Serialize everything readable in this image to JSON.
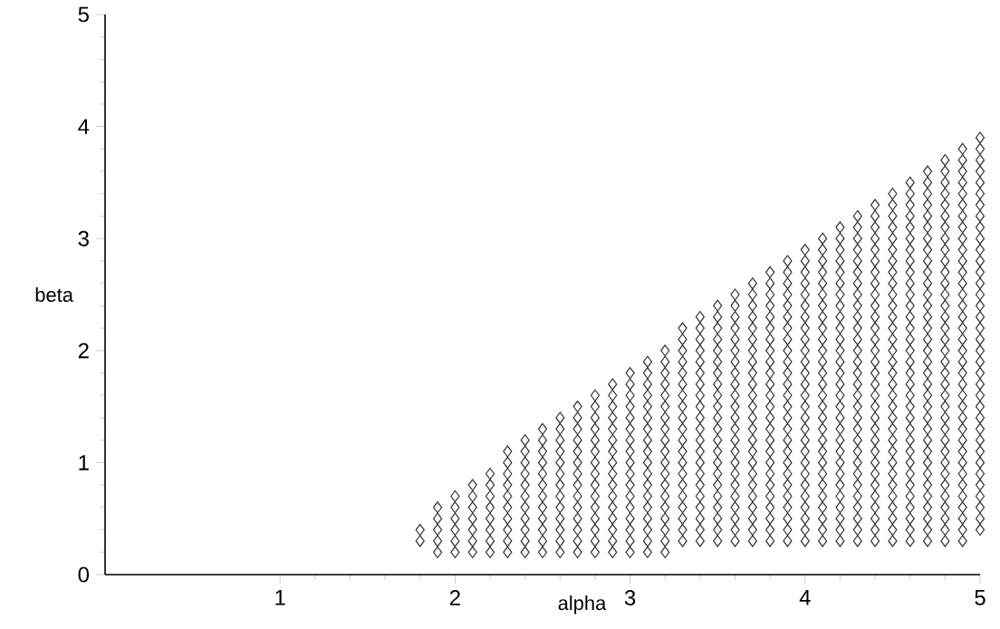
{
  "chart_data": {
    "type": "scatter",
    "xlabel": "alpha",
    "ylabel": "beta",
    "xlim": [
      0,
      5
    ],
    "ylim": [
      0,
      5
    ],
    "xticks": [
      1,
      2,
      3,
      4,
      5
    ],
    "yticks": [
      0,
      1,
      2,
      3,
      4,
      5
    ],
    "marker": "diamond",
    "series": [
      {
        "color": "#333333",
        "x": [
          1.8,
          1.8
        ],
        "values": [
          0.3,
          0.4
        ]
      },
      {
        "color": "#333333",
        "x": [
          1.9,
          1.9,
          1.9,
          1.9,
          1.9
        ],
        "values": [
          0.2,
          0.3,
          0.4,
          0.5,
          0.6
        ]
      },
      {
        "color": "#333333",
        "x": [
          2,
          2,
          2,
          2,
          2,
          2
        ],
        "values": [
          0.2,
          0.3,
          0.4,
          0.5,
          0.6,
          0.7
        ]
      },
      {
        "color": "#333333",
        "x": [
          2.1,
          2.1,
          2.1,
          2.1,
          2.1,
          2.1,
          2.1
        ],
        "values": [
          0.2,
          0.3,
          0.4,
          0.5,
          0.6,
          0.7,
          0.8
        ]
      },
      {
        "color": "#333333",
        "x": [
          2.2,
          2.2,
          2.2,
          2.2,
          2.2,
          2.2,
          2.2,
          2.2
        ],
        "values": [
          0.2,
          0.3,
          0.4,
          0.5,
          0.6,
          0.7,
          0.8,
          0.9
        ]
      },
      {
        "color": "#333333",
        "x": [
          2.3,
          2.3,
          2.3,
          2.3,
          2.3,
          2.3,
          2.3,
          2.3,
          2.3,
          2.3
        ],
        "values": [
          0.2,
          0.3,
          0.4,
          0.5,
          0.6,
          0.7,
          0.8,
          0.9,
          1,
          1.1
        ]
      },
      {
        "color": "#333333",
        "x": [
          2.4,
          2.4,
          2.4,
          2.4,
          2.4,
          2.4,
          2.4,
          2.4,
          2.4,
          2.4,
          2.4
        ],
        "values": [
          0.2,
          0.3,
          0.4,
          0.5,
          0.6,
          0.7,
          0.8,
          0.9,
          1,
          1.1,
          1.2
        ]
      },
      {
        "color": "#333333",
        "x": [
          2.5,
          2.5,
          2.5,
          2.5,
          2.5,
          2.5,
          2.5,
          2.5,
          2.5,
          2.5,
          2.5,
          2.5
        ],
        "values": [
          0.2,
          0.3,
          0.4,
          0.5,
          0.6,
          0.7,
          0.8,
          0.9,
          1,
          1.1,
          1.2,
          1.3
        ]
      },
      {
        "color": "#333333",
        "x": [
          2.6,
          2.6,
          2.6,
          2.6,
          2.6,
          2.6,
          2.6,
          2.6,
          2.6,
          2.6,
          2.6,
          2.6,
          2.6
        ],
        "values": [
          0.2,
          0.3,
          0.4,
          0.5,
          0.6,
          0.7,
          0.8,
          0.9,
          1,
          1.1,
          1.2,
          1.3,
          1.4
        ]
      },
      {
        "color": "#333333",
        "x": [
          2.7,
          2.7,
          2.7,
          2.7,
          2.7,
          2.7,
          2.7,
          2.7,
          2.7,
          2.7,
          2.7,
          2.7,
          2.7,
          2.7
        ],
        "values": [
          0.2,
          0.3,
          0.4,
          0.5,
          0.6,
          0.7,
          0.8,
          0.9,
          1,
          1.1,
          1.2,
          1.3,
          1.4,
          1.5
        ]
      },
      {
        "color": "#333333",
        "x": [
          2.8,
          2.8,
          2.8,
          2.8,
          2.8,
          2.8,
          2.8,
          2.8,
          2.8,
          2.8,
          2.8,
          2.8,
          2.8,
          2.8,
          2.8
        ],
        "values": [
          0.2,
          0.3,
          0.4,
          0.5,
          0.6,
          0.7,
          0.8,
          0.9,
          1,
          1.1,
          1.2,
          1.3,
          1.4,
          1.5,
          1.6
        ]
      },
      {
        "color": "#333333",
        "x": [
          2.9,
          2.9,
          2.9,
          2.9,
          2.9,
          2.9,
          2.9,
          2.9,
          2.9,
          2.9,
          2.9,
          2.9,
          2.9,
          2.9,
          2.9,
          2.9
        ],
        "values": [
          0.2,
          0.3,
          0.4,
          0.5,
          0.6,
          0.7,
          0.8,
          0.9,
          1,
          1.1,
          1.2,
          1.3,
          1.4,
          1.5,
          1.6,
          1.7
        ]
      },
      {
        "color": "#333333",
        "x": [
          3,
          3,
          3,
          3,
          3,
          3,
          3,
          3,
          3,
          3,
          3,
          3,
          3,
          3,
          3,
          3,
          3
        ],
        "values": [
          0.2,
          0.3,
          0.4,
          0.5,
          0.6,
          0.7,
          0.8,
          0.9,
          1,
          1.1,
          1.2,
          1.3,
          1.4,
          1.5,
          1.6,
          1.7,
          1.8
        ]
      },
      {
        "color": "#333333",
        "x": [
          3.1,
          3.1,
          3.1,
          3.1,
          3.1,
          3.1,
          3.1,
          3.1,
          3.1,
          3.1,
          3.1,
          3.1,
          3.1,
          3.1,
          3.1,
          3.1,
          3.1,
          3.1
        ],
        "values": [
          0.2,
          0.3,
          0.4,
          0.5,
          0.6,
          0.7,
          0.8,
          0.9,
          1,
          1.1,
          1.2,
          1.3,
          1.4,
          1.5,
          1.6,
          1.7,
          1.8,
          1.9
        ]
      },
      {
        "color": "#333333",
        "x": [
          3.2,
          3.2,
          3.2,
          3.2,
          3.2,
          3.2,
          3.2,
          3.2,
          3.2,
          3.2,
          3.2,
          3.2,
          3.2,
          3.2,
          3.2,
          3.2,
          3.2,
          3.2,
          3.2
        ],
        "values": [
          0.2,
          0.3,
          0.4,
          0.5,
          0.6,
          0.7,
          0.8,
          0.9,
          1,
          1.1,
          1.2,
          1.3,
          1.4,
          1.5,
          1.6,
          1.7,
          1.8,
          1.9,
          2
        ]
      },
      {
        "color": "#333333",
        "x": [
          3.3,
          3.3,
          3.3,
          3.3,
          3.3,
          3.3,
          3.3,
          3.3,
          3.3,
          3.3,
          3.3,
          3.3,
          3.3,
          3.3,
          3.3,
          3.3,
          3.3,
          3.3,
          3.3,
          3.3
        ],
        "values": [
          0.3,
          0.4,
          0.5,
          0.6,
          0.7,
          0.8,
          0.9,
          1,
          1.1,
          1.2,
          1.3,
          1.4,
          1.5,
          1.6,
          1.7,
          1.8,
          1.9,
          2,
          2.1,
          2.2
        ]
      },
      {
        "color": "#333333",
        "x": [
          3.4,
          3.4,
          3.4,
          3.4,
          3.4,
          3.4,
          3.4,
          3.4,
          3.4,
          3.4,
          3.4,
          3.4,
          3.4,
          3.4,
          3.4,
          3.4,
          3.4,
          3.4,
          3.4,
          3.4,
          3.4
        ],
        "values": [
          0.3,
          0.4,
          0.5,
          0.6,
          0.7,
          0.8,
          0.9,
          1,
          1.1,
          1.2,
          1.3,
          1.4,
          1.5,
          1.6,
          1.7,
          1.8,
          1.9,
          2,
          2.1,
          2.2,
          2.3
        ]
      },
      {
        "color": "#333333",
        "x": [
          3.5,
          3.5,
          3.5,
          3.5,
          3.5,
          3.5,
          3.5,
          3.5,
          3.5,
          3.5,
          3.5,
          3.5,
          3.5,
          3.5,
          3.5,
          3.5,
          3.5,
          3.5,
          3.5,
          3.5,
          3.5,
          3.5
        ],
        "values": [
          0.3,
          0.4,
          0.5,
          0.6,
          0.7,
          0.8,
          0.9,
          1,
          1.1,
          1.2,
          1.3,
          1.4,
          1.5,
          1.6,
          1.7,
          1.8,
          1.9,
          2,
          2.1,
          2.2,
          2.3,
          2.4
        ]
      },
      {
        "color": "#333333",
        "x": [
          3.6,
          3.6,
          3.6,
          3.6,
          3.6,
          3.6,
          3.6,
          3.6,
          3.6,
          3.6,
          3.6,
          3.6,
          3.6,
          3.6,
          3.6,
          3.6,
          3.6,
          3.6,
          3.6,
          3.6,
          3.6,
          3.6,
          3.6
        ],
        "values": [
          0.3,
          0.4,
          0.5,
          0.6,
          0.7,
          0.8,
          0.9,
          1,
          1.1,
          1.2,
          1.3,
          1.4,
          1.5,
          1.6,
          1.7,
          1.8,
          1.9,
          2,
          2.1,
          2.2,
          2.3,
          2.4,
          2.5
        ]
      },
      {
        "color": "#333333",
        "x": [
          3.7,
          3.7,
          3.7,
          3.7,
          3.7,
          3.7,
          3.7,
          3.7,
          3.7,
          3.7,
          3.7,
          3.7,
          3.7,
          3.7,
          3.7,
          3.7,
          3.7,
          3.7,
          3.7,
          3.7,
          3.7,
          3.7,
          3.7,
          3.7
        ],
        "values": [
          0.3,
          0.4,
          0.5,
          0.6,
          0.7,
          0.8,
          0.9,
          1,
          1.1,
          1.2,
          1.3,
          1.4,
          1.5,
          1.6,
          1.7,
          1.8,
          1.9,
          2,
          2.1,
          2.2,
          2.3,
          2.4,
          2.5,
          2.6
        ]
      },
      {
        "color": "#333333",
        "x": [
          3.8,
          3.8,
          3.8,
          3.8,
          3.8,
          3.8,
          3.8,
          3.8,
          3.8,
          3.8,
          3.8,
          3.8,
          3.8,
          3.8,
          3.8,
          3.8,
          3.8,
          3.8,
          3.8,
          3.8,
          3.8,
          3.8,
          3.8,
          3.8,
          3.8
        ],
        "values": [
          0.3,
          0.4,
          0.5,
          0.6,
          0.7,
          0.8,
          0.9,
          1,
          1.1,
          1.2,
          1.3,
          1.4,
          1.5,
          1.6,
          1.7,
          1.8,
          1.9,
          2,
          2.1,
          2.2,
          2.3,
          2.4,
          2.5,
          2.6,
          2.7
        ]
      },
      {
        "color": "#333333",
        "x": [
          3.9,
          3.9,
          3.9,
          3.9,
          3.9,
          3.9,
          3.9,
          3.9,
          3.9,
          3.9,
          3.9,
          3.9,
          3.9,
          3.9,
          3.9,
          3.9,
          3.9,
          3.9,
          3.9,
          3.9,
          3.9,
          3.9,
          3.9,
          3.9,
          3.9,
          3.9
        ],
        "values": [
          0.3,
          0.4,
          0.5,
          0.6,
          0.7,
          0.8,
          0.9,
          1,
          1.1,
          1.2,
          1.3,
          1.4,
          1.5,
          1.6,
          1.7,
          1.8,
          1.9,
          2,
          2.1,
          2.2,
          2.3,
          2.4,
          2.5,
          2.6,
          2.7,
          2.8
        ]
      },
      {
        "color": "#333333",
        "x": [
          4,
          4,
          4,
          4,
          4,
          4,
          4,
          4,
          4,
          4,
          4,
          4,
          4,
          4,
          4,
          4,
          4,
          4,
          4,
          4,
          4,
          4,
          4,
          4,
          4,
          4,
          4
        ],
        "values": [
          0.3,
          0.4,
          0.5,
          0.6,
          0.7,
          0.8,
          0.9,
          1,
          1.1,
          1.2,
          1.3,
          1.4,
          1.5,
          1.6,
          1.7,
          1.8,
          1.9,
          2,
          2.1,
          2.2,
          2.3,
          2.4,
          2.5,
          2.6,
          2.7,
          2.8,
          2.9
        ]
      },
      {
        "color": "#333333",
        "x": [
          4.1,
          4.1,
          4.1,
          4.1,
          4.1,
          4.1,
          4.1,
          4.1,
          4.1,
          4.1,
          4.1,
          4.1,
          4.1,
          4.1,
          4.1,
          4.1,
          4.1,
          4.1,
          4.1,
          4.1,
          4.1,
          4.1,
          4.1,
          4.1,
          4.1,
          4.1,
          4.1,
          4.1
        ],
        "values": [
          0.3,
          0.4,
          0.5,
          0.6,
          0.7,
          0.8,
          0.9,
          1,
          1.1,
          1.2,
          1.3,
          1.4,
          1.5,
          1.6,
          1.7,
          1.8,
          1.9,
          2,
          2.1,
          2.2,
          2.3,
          2.4,
          2.5,
          2.6,
          2.7,
          2.8,
          2.9,
          3
        ]
      },
      {
        "color": "#333333",
        "x": [
          4.2,
          4.2,
          4.2,
          4.2,
          4.2,
          4.2,
          4.2,
          4.2,
          4.2,
          4.2,
          4.2,
          4.2,
          4.2,
          4.2,
          4.2,
          4.2,
          4.2,
          4.2,
          4.2,
          4.2,
          4.2,
          4.2,
          4.2,
          4.2,
          4.2,
          4.2,
          4.2,
          4.2,
          4.2
        ],
        "values": [
          0.3,
          0.4,
          0.5,
          0.6,
          0.7,
          0.8,
          0.9,
          1,
          1.1,
          1.2,
          1.3,
          1.4,
          1.5,
          1.6,
          1.7,
          1.8,
          1.9,
          2,
          2.1,
          2.2,
          2.3,
          2.4,
          2.5,
          2.6,
          2.7,
          2.8,
          2.9,
          3,
          3.1
        ]
      },
      {
        "color": "#333333",
        "x": [
          4.3,
          4.3,
          4.3,
          4.3,
          4.3,
          4.3,
          4.3,
          4.3,
          4.3,
          4.3,
          4.3,
          4.3,
          4.3,
          4.3,
          4.3,
          4.3,
          4.3,
          4.3,
          4.3,
          4.3,
          4.3,
          4.3,
          4.3,
          4.3,
          4.3,
          4.3,
          4.3,
          4.3,
          4.3,
          4.3
        ],
        "values": [
          0.3,
          0.4,
          0.5,
          0.6,
          0.7,
          0.8,
          0.9,
          1,
          1.1,
          1.2,
          1.3,
          1.4,
          1.5,
          1.6,
          1.7,
          1.8,
          1.9,
          2,
          2.1,
          2.2,
          2.3,
          2.4,
          2.5,
          2.6,
          2.7,
          2.8,
          2.9,
          3,
          3.1,
          3.2
        ]
      },
      {
        "color": "#333333",
        "x": [
          4.4,
          4.4,
          4.4,
          4.4,
          4.4,
          4.4,
          4.4,
          4.4,
          4.4,
          4.4,
          4.4,
          4.4,
          4.4,
          4.4,
          4.4,
          4.4,
          4.4,
          4.4,
          4.4,
          4.4,
          4.4,
          4.4,
          4.4,
          4.4,
          4.4,
          4.4,
          4.4,
          4.4,
          4.4,
          4.4,
          4.4
        ],
        "values": [
          0.3,
          0.4,
          0.5,
          0.6,
          0.7,
          0.8,
          0.9,
          1,
          1.1,
          1.2,
          1.3,
          1.4,
          1.5,
          1.6,
          1.7,
          1.8,
          1.9,
          2,
          2.1,
          2.2,
          2.3,
          2.4,
          2.5,
          2.6,
          2.7,
          2.8,
          2.9,
          3,
          3.1,
          3.2,
          3.3
        ]
      },
      {
        "color": "#333333",
        "x": [
          4.5,
          4.5,
          4.5,
          4.5,
          4.5,
          4.5,
          4.5,
          4.5,
          4.5,
          4.5,
          4.5,
          4.5,
          4.5,
          4.5,
          4.5,
          4.5,
          4.5,
          4.5,
          4.5,
          4.5,
          4.5,
          4.5,
          4.5,
          4.5,
          4.5,
          4.5,
          4.5,
          4.5,
          4.5,
          4.5,
          4.5,
          4.5
        ],
        "values": [
          0.3,
          0.4,
          0.5,
          0.6,
          0.7,
          0.8,
          0.9,
          1,
          1.1,
          1.2,
          1.3,
          1.4,
          1.5,
          1.6,
          1.7,
          1.8,
          1.9,
          2,
          2.1,
          2.2,
          2.3,
          2.4,
          2.5,
          2.6,
          2.7,
          2.8,
          2.9,
          3,
          3.1,
          3.2,
          3.3,
          3.4
        ]
      },
      {
        "color": "#333333",
        "x": [
          4.6,
          4.6,
          4.6,
          4.6,
          4.6,
          4.6,
          4.6,
          4.6,
          4.6,
          4.6,
          4.6,
          4.6,
          4.6,
          4.6,
          4.6,
          4.6,
          4.6,
          4.6,
          4.6,
          4.6,
          4.6,
          4.6,
          4.6,
          4.6,
          4.6,
          4.6,
          4.6,
          4.6,
          4.6,
          4.6,
          4.6,
          4.6,
          4.6
        ],
        "values": [
          0.3,
          0.4,
          0.5,
          0.6,
          0.7,
          0.8,
          0.9,
          1,
          1.1,
          1.2,
          1.3,
          1.4,
          1.5,
          1.6,
          1.7,
          1.8,
          1.9,
          2,
          2.1,
          2.2,
          2.3,
          2.4,
          2.5,
          2.6,
          2.7,
          2.8,
          2.9,
          3,
          3.1,
          3.2,
          3.3,
          3.4,
          3.5
        ]
      },
      {
        "color": "#333333",
        "x": [
          4.7,
          4.7,
          4.7,
          4.7,
          4.7,
          4.7,
          4.7,
          4.7,
          4.7,
          4.7,
          4.7,
          4.7,
          4.7,
          4.7,
          4.7,
          4.7,
          4.7,
          4.7,
          4.7,
          4.7,
          4.7,
          4.7,
          4.7,
          4.7,
          4.7,
          4.7,
          4.7,
          4.7,
          4.7,
          4.7,
          4.7,
          4.7,
          4.7,
          4.7
        ],
        "values": [
          0.3,
          0.4,
          0.5,
          0.6,
          0.7,
          0.8,
          0.9,
          1,
          1.1,
          1.2,
          1.3,
          1.4,
          1.5,
          1.6,
          1.7,
          1.8,
          1.9,
          2,
          2.1,
          2.2,
          2.3,
          2.4,
          2.5,
          2.6,
          2.7,
          2.8,
          2.9,
          3,
          3.1,
          3.2,
          3.3,
          3.4,
          3.5,
          3.6
        ]
      },
      {
        "color": "#333333",
        "x": [
          4.8,
          4.8,
          4.8,
          4.8,
          4.8,
          4.8,
          4.8,
          4.8,
          4.8,
          4.8,
          4.8,
          4.8,
          4.8,
          4.8,
          4.8,
          4.8,
          4.8,
          4.8,
          4.8,
          4.8,
          4.8,
          4.8,
          4.8,
          4.8,
          4.8,
          4.8,
          4.8,
          4.8,
          4.8,
          4.8,
          4.8,
          4.8,
          4.8,
          4.8,
          4.8
        ],
        "values": [
          0.3,
          0.4,
          0.5,
          0.6,
          0.7,
          0.8,
          0.9,
          1,
          1.1,
          1.2,
          1.3,
          1.4,
          1.5,
          1.6,
          1.7,
          1.8,
          1.9,
          2,
          2.1,
          2.2,
          2.3,
          2.4,
          2.5,
          2.6,
          2.7,
          2.8,
          2.9,
          3,
          3.1,
          3.2,
          3.3,
          3.4,
          3.5,
          3.6,
          3.7
        ]
      },
      {
        "color": "#333333",
        "x": [
          4.9,
          4.9,
          4.9,
          4.9,
          4.9,
          4.9,
          4.9,
          4.9,
          4.9,
          4.9,
          4.9,
          4.9,
          4.9,
          4.9,
          4.9,
          4.9,
          4.9,
          4.9,
          4.9,
          4.9,
          4.9,
          4.9,
          4.9,
          4.9,
          4.9,
          4.9,
          4.9,
          4.9,
          4.9,
          4.9,
          4.9,
          4.9,
          4.9,
          4.9,
          4.9,
          4.9
        ],
        "values": [
          0.3,
          0.4,
          0.5,
          0.6,
          0.7,
          0.8,
          0.9,
          1,
          1.1,
          1.2,
          1.3,
          1.4,
          1.5,
          1.6,
          1.7,
          1.8,
          1.9,
          2,
          2.1,
          2.2,
          2.3,
          2.4,
          2.5,
          2.6,
          2.7,
          2.8,
          2.9,
          3,
          3.1,
          3.2,
          3.3,
          3.4,
          3.5,
          3.6,
          3.7,
          3.8
        ]
      },
      {
        "color": "#333333",
        "x": [
          5,
          5,
          5,
          5,
          5,
          5,
          5,
          5,
          5,
          5,
          5,
          5,
          5,
          5,
          5,
          5,
          5,
          5,
          5,
          5,
          5,
          5,
          5,
          5,
          5,
          5,
          5,
          5,
          5,
          5,
          5,
          5,
          5,
          5,
          5,
          5
        ],
        "values": [
          0.4,
          0.5,
          0.6,
          0.7,
          0.8,
          0.9,
          1,
          1.1,
          1.2,
          1.3,
          1.4,
          1.5,
          1.6,
          1.7,
          1.8,
          1.9,
          2,
          2.1,
          2.2,
          2.3,
          2.4,
          2.5,
          2.6,
          2.7,
          2.8,
          2.9,
          3,
          3.1,
          3.2,
          3.3,
          3.4,
          3.5,
          3.6,
          3.7,
          3.8,
          3.9
        ]
      }
    ]
  }
}
